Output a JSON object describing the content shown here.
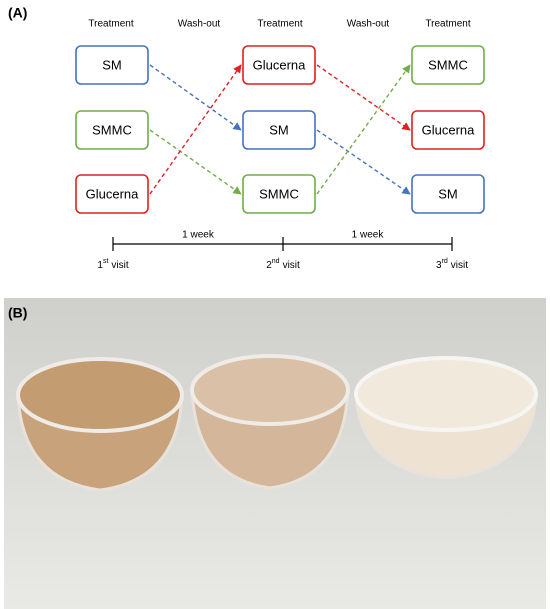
{
  "panel_a": {
    "label": "(A)",
    "headers": [
      "Treatment",
      "Wash-out",
      "Treatment",
      "Wash-out",
      "Treatment"
    ],
    "columns": [
      [
        {
          "label": "SM",
          "color": "#4472c4"
        },
        {
          "label": "SMMC",
          "color": "#70ad47"
        },
        {
          "label": "Glucerna",
          "color": "#e02020"
        }
      ],
      [
        {
          "label": "Glucerna",
          "color": "#e02020"
        },
        {
          "label": "SM",
          "color": "#4472c4"
        },
        {
          "label": "SMMC",
          "color": "#70ad47"
        }
      ],
      [
        {
          "label": "SMMC",
          "color": "#70ad47"
        },
        {
          "label": "Glucerna",
          "color": "#e02020"
        },
        {
          "label": "SM",
          "color": "#4472c4"
        }
      ]
    ],
    "timeline": {
      "intervals": [
        "1 week",
        "1 week"
      ],
      "visits": [
        {
          "number": "1",
          "suffix": "st",
          "text": "visit"
        },
        {
          "number": "2",
          "suffix": "nd",
          "text": "visit"
        },
        {
          "number": "3",
          "suffix": "rd",
          "text": "visit"
        }
      ]
    }
  },
  "panel_b": {
    "label": "(B)"
  }
}
